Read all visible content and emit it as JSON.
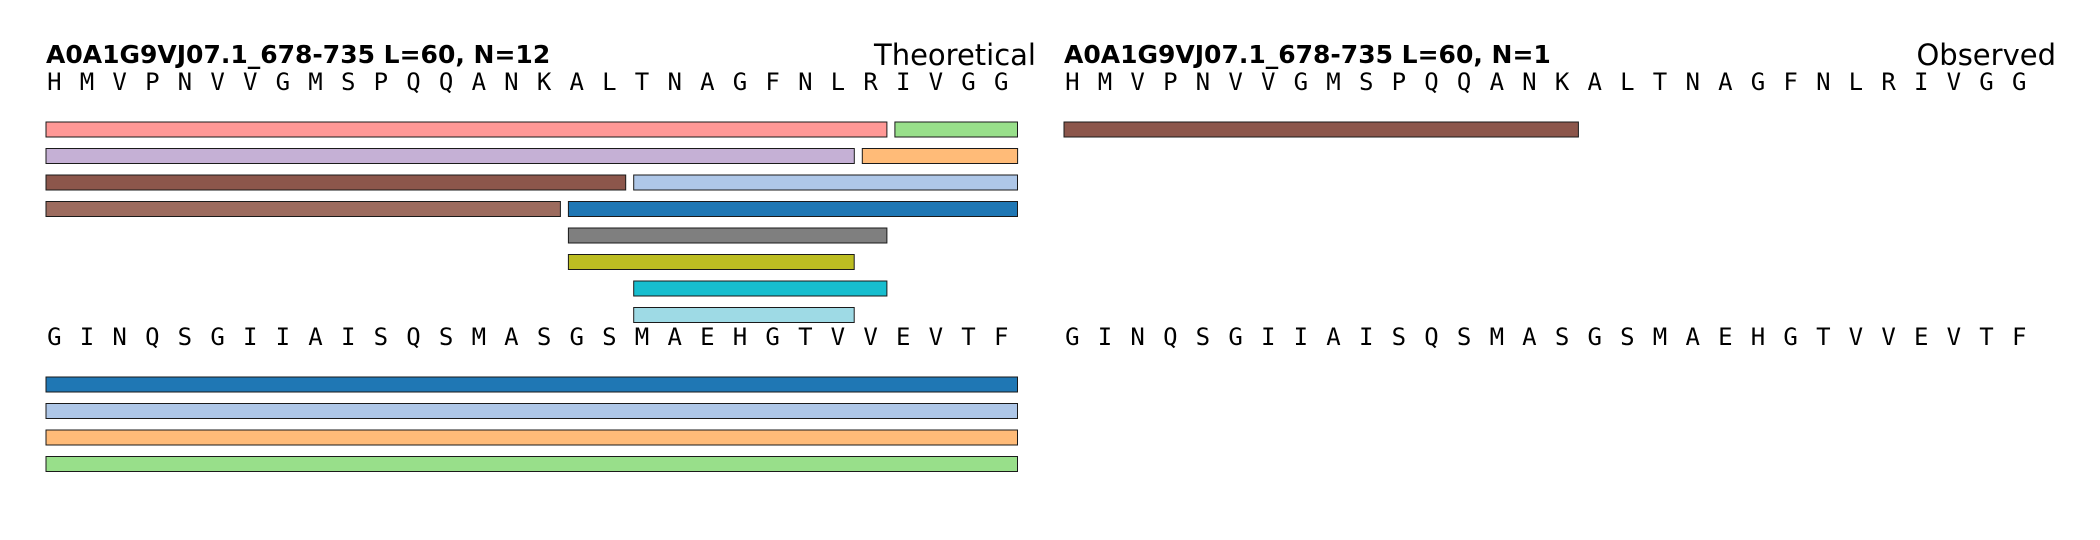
{
  "panels": [
    {
      "id": "theoretical",
      "title": "A0A1G9VJ07.1_678-735  L=60, N=12",
      "mode": "Theoretical",
      "rows": [
        {
          "sequence": [
            "H",
            "M",
            "V",
            "P",
            "N",
            "V",
            "V",
            "G",
            "M",
            "S",
            "P",
            "Q",
            "Q",
            "A",
            "N",
            "K",
            "A",
            "L",
            "T",
            "N",
            "A",
            "G",
            "F",
            "N",
            "L",
            "R",
            "I",
            "V",
            "G",
            "G"
          ],
          "peptides": [
            {
              "start": 1,
              "end": 26,
              "color": "#ff9896",
              "lane": 0
            },
            {
              "start": 27,
              "end": 30,
              "color": "#98df8a",
              "lane": 0
            },
            {
              "start": 1,
              "end": 25,
              "color": "#c5b0d5",
              "lane": 1
            },
            {
              "start": 26,
              "end": 30,
              "color": "#ffbb78",
              "lane": 1
            },
            {
              "start": 1,
              "end": 18,
              "color": "#8c564b",
              "lane": 2
            },
            {
              "start": 19,
              "end": 30,
              "color": "#aec7e8",
              "lane": 2
            },
            {
              "start": 1,
              "end": 16,
              "color": "#9c6b5e",
              "lane": 3
            },
            {
              "start": 17,
              "end": 30,
              "color": "#1f77b4",
              "lane": 3
            },
            {
              "start": 17,
              "end": 26,
              "color": "#7f7f7f",
              "lane": 4
            },
            {
              "start": 17,
              "end": 25,
              "color": "#bcbd22",
              "lane": 5
            },
            {
              "start": 19,
              "end": 26,
              "color": "#17becf",
              "lane": 6
            },
            {
              "start": 19,
              "end": 25,
              "color": "#9edae5",
              "lane": 7
            }
          ]
        },
        {
          "sequence": [
            "G",
            "I",
            "N",
            "Q",
            "S",
            "G",
            "I",
            "I",
            "A",
            "I",
            "S",
            "Q",
            "S",
            "M",
            "A",
            "S",
            "G",
            "S",
            "M",
            "A",
            "E",
            "H",
            "G",
            "T",
            "V",
            "V",
            "E",
            "V",
            "T",
            "F"
          ],
          "peptides": [
            {
              "start": 1,
              "end": 30,
              "color": "#1f77b4",
              "lane": 0
            },
            {
              "start": 1,
              "end": 30,
              "color": "#aec7e8",
              "lane": 1
            },
            {
              "start": 1,
              "end": 30,
              "color": "#ffbb78",
              "lane": 2
            },
            {
              "start": 1,
              "end": 30,
              "color": "#98df8a",
              "lane": 3
            }
          ]
        }
      ]
    },
    {
      "id": "observed",
      "title": "A0A1G9VJ07.1_678-735  L=60, N=1",
      "mode": "Observed",
      "rows": [
        {
          "sequence": [
            "H",
            "M",
            "V",
            "P",
            "N",
            "V",
            "V",
            "G",
            "M",
            "S",
            "P",
            "Q",
            "Q",
            "A",
            "N",
            "K",
            "A",
            "L",
            "T",
            "N",
            "A",
            "G",
            "F",
            "N",
            "L",
            "R",
            "I",
            "V",
            "G",
            "G"
          ],
          "peptides": [
            {
              "start": 1,
              "end": 16,
              "color": "#8c564b",
              "lane": 0
            }
          ]
        },
        {
          "sequence": [
            "G",
            "I",
            "N",
            "Q",
            "S",
            "G",
            "I",
            "I",
            "A",
            "I",
            "S",
            "Q",
            "S",
            "M",
            "A",
            "S",
            "G",
            "S",
            "M",
            "A",
            "E",
            "H",
            "G",
            "T",
            "V",
            "V",
            "E",
            "V",
            "T",
            "F"
          ],
          "peptides": []
        }
      ]
    }
  ]
}
